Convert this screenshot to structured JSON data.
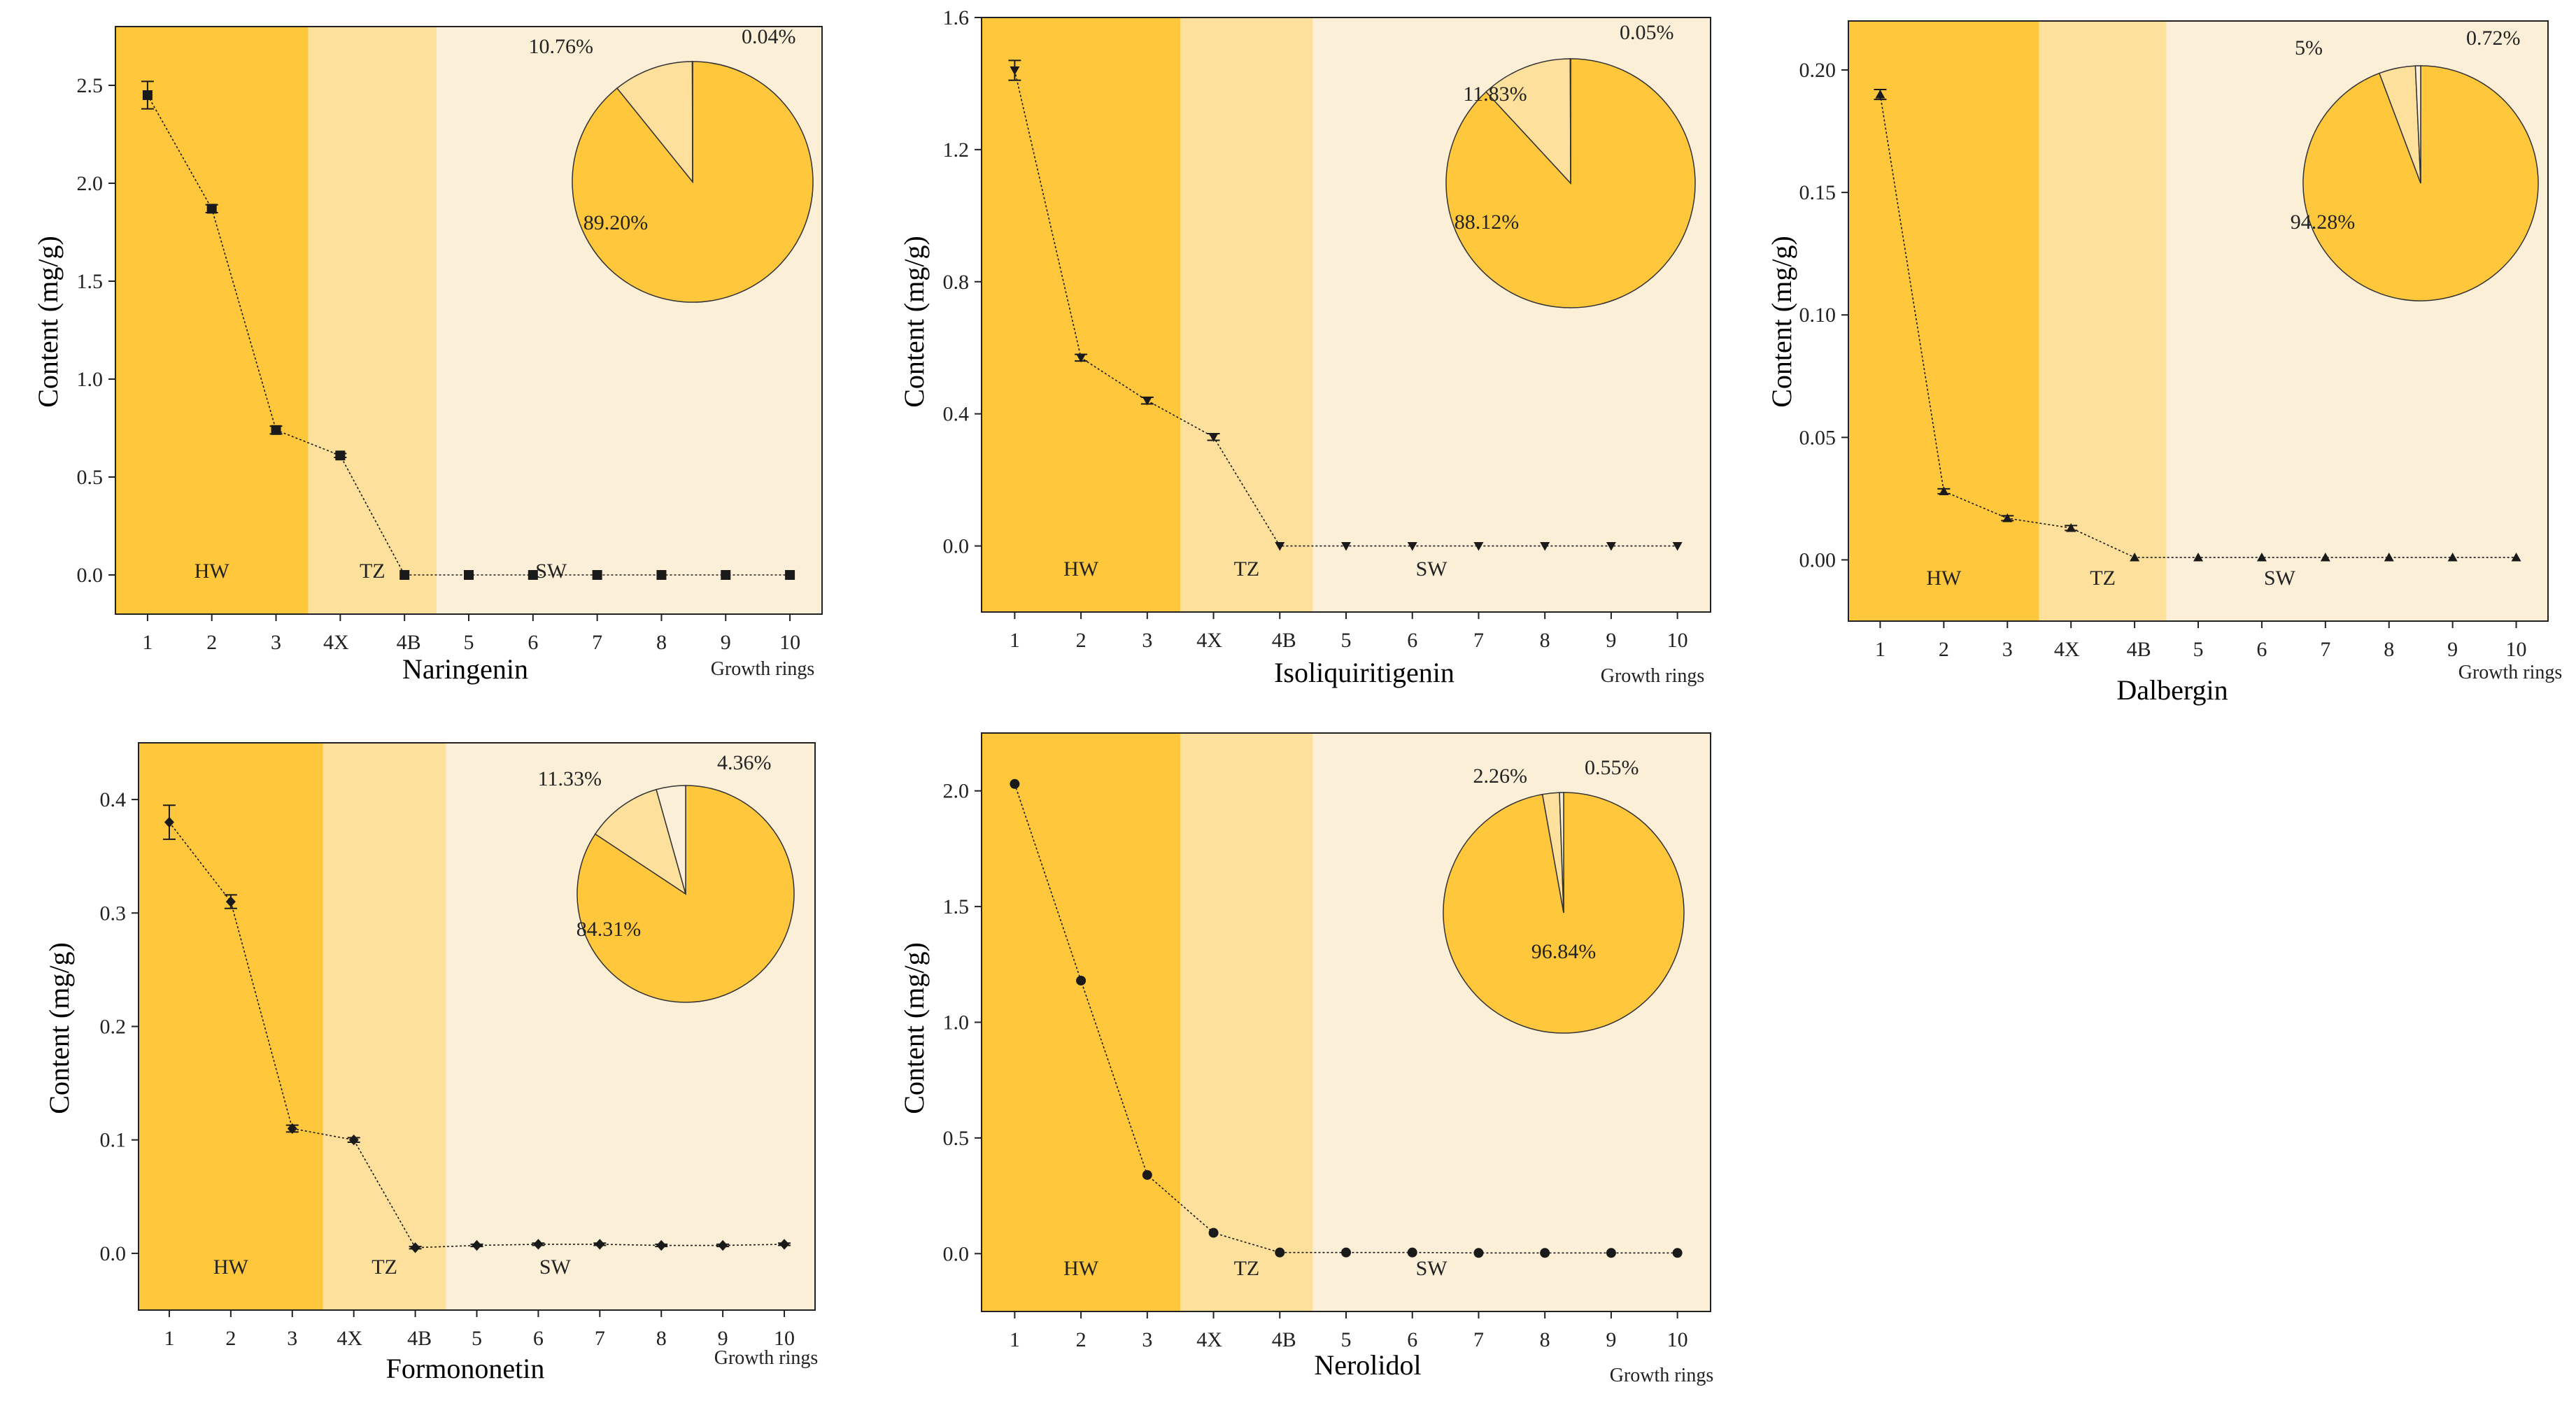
{
  "colors": {
    "hw": "#ffc83c",
    "tz": "#fde09c",
    "sw": "#fbefd8",
    "line": "#1a1a1a",
    "pie_edge": "#333333"
  },
  "chart_data": [
    {
      "type": "line",
      "title": "Naringenin",
      "ylabel": "Content   (mg/g)",
      "xlabel": "Growth rings",
      "categories": [
        "1",
        "2",
        "3",
        "4X",
        "4B",
        "5",
        "6",
        "7",
        "8",
        "9",
        "10"
      ],
      "values": [
        2.45,
        1.87,
        0.74,
        0.61,
        0.0,
        0.0,
        0.0,
        0.0,
        0.0,
        0.0,
        0.0
      ],
      "errors": [
        0.07,
        0.02,
        0.02,
        0.01,
        0,
        0,
        0,
        0,
        0,
        0,
        0
      ],
      "ylim": [
        -0.2,
        2.8
      ],
      "yticks": [
        "0.0",
        "0.5",
        "1.0",
        "1.5",
        "2.0",
        "2.5"
      ],
      "ytick_values": [
        0.0,
        0.5,
        1.0,
        1.5,
        2.0,
        2.5
      ],
      "regions": {
        "hw": "HW",
        "tz": "TZ",
        "sw": "SW"
      },
      "marker": "square",
      "pie": {
        "slices": [
          {
            "label": "89.20%",
            "value": 89.2,
            "region": "hw"
          },
          {
            "label": "10.76%",
            "value": 10.76,
            "region": "tz"
          },
          {
            "label": "0.04%",
            "value": 0.04,
            "region": "sw"
          }
        ]
      }
    },
    {
      "type": "line",
      "title": "Isoliquiritigenin",
      "ylabel": "Content   (mg/g)",
      "xlabel": "Growth rings",
      "categories": [
        "1",
        "2",
        "3",
        "4X",
        "4B",
        "5",
        "6",
        "7",
        "8",
        "9",
        "10"
      ],
      "values": [
        1.44,
        0.57,
        0.44,
        0.33,
        0.0,
        0.0,
        0.0,
        0.0,
        0.0,
        0.0,
        0.0
      ],
      "errors": [
        0.03,
        0.01,
        0.01,
        0.01,
        0,
        0,
        0,
        0,
        0,
        0,
        0
      ],
      "ylim": [
        -0.2,
        1.6
      ],
      "yticks": [
        "0.0",
        "0.4",
        "0.8",
        "1.2",
        "1.6"
      ],
      "ytick_values": [
        0.0,
        0.4,
        0.8,
        1.2,
        1.6
      ],
      "regions": {
        "hw": "HW",
        "tz": "TZ",
        "sw": "SW"
      },
      "marker": "triangle-down",
      "pie": {
        "slices": [
          {
            "label": "88.12%",
            "value": 88.12,
            "region": "hw"
          },
          {
            "label": "11.83%",
            "value": 11.83,
            "region": "tz"
          },
          {
            "label": "0.05%",
            "value": 0.05,
            "region": "sw"
          }
        ]
      }
    },
    {
      "type": "line",
      "title": "Dalbergin",
      "ylabel": "Content   (mg/g)",
      "xlabel": "Growth rings",
      "categories": [
        "1",
        "2",
        "3",
        "4X",
        "4B",
        "5",
        "6",
        "7",
        "8",
        "9",
        "10"
      ],
      "values": [
        0.19,
        0.028,
        0.017,
        0.013,
        0.001,
        0.001,
        0.001,
        0.001,
        0.001,
        0.001,
        0.001
      ],
      "errors": [
        0.002,
        0.001,
        0.001,
        0.001,
        0,
        0,
        0,
        0,
        0,
        0,
        0
      ],
      "ylim": [
        -0.025,
        0.22
      ],
      "yticks": [
        "0.00",
        "0.05",
        "0.10",
        "0.15",
        "0.20"
      ],
      "ytick_values": [
        0.0,
        0.05,
        0.1,
        0.15,
        0.2
      ],
      "regions": {
        "hw": "HW",
        "tz": "TZ",
        "sw": "SW"
      },
      "marker": "triangle-up",
      "pie": {
        "slices": [
          {
            "label": "94.28%",
            "value": 94.28,
            "region": "hw"
          },
          {
            "label": "5%",
            "value": 5.0,
            "region": "tz"
          },
          {
            "label": "0.72%",
            "value": 0.72,
            "region": "sw"
          }
        ]
      }
    },
    {
      "type": "line",
      "title": "Formononetin",
      "ylabel": "Content   (mg/g)",
      "xlabel": "Growth rings",
      "categories": [
        "1",
        "2",
        "3",
        "4X",
        "4B",
        "5",
        "6",
        "7",
        "8",
        "9",
        "10"
      ],
      "values": [
        0.38,
        0.31,
        0.11,
        0.1,
        0.005,
        0.007,
        0.008,
        0.008,
        0.007,
        0.007,
        0.008
      ],
      "errors": [
        0.015,
        0.006,
        0.003,
        0.002,
        0.001,
        0.001,
        0.001,
        0.001,
        0.001,
        0.001,
        0.001
      ],
      "ylim": [
        -0.05,
        0.45
      ],
      "yticks": [
        "0.0",
        "0.1",
        "0.2",
        "0.3",
        "0.4"
      ],
      "ytick_values": [
        0.0,
        0.1,
        0.2,
        0.3,
        0.4
      ],
      "regions": {
        "hw": "HW",
        "tz": "TZ",
        "sw": "SW"
      },
      "marker": "diamond",
      "pie": {
        "slices": [
          {
            "label": "84.31%",
            "value": 84.31,
            "region": "hw"
          },
          {
            "label": "11.33%",
            "value": 11.33,
            "region": "tz"
          },
          {
            "label": "4.36%",
            "value": 4.36,
            "region": "sw"
          }
        ]
      }
    },
    {
      "type": "line",
      "title": "Nerolidol",
      "ylabel": "Content   (mg/g)",
      "xlabel": "Growth  rings",
      "categories": [
        "1",
        "2",
        "3",
        "4X",
        "4B",
        "5",
        "6",
        "7",
        "8",
        "9",
        "10"
      ],
      "values": [
        2.03,
        1.18,
        0.34,
        0.09,
        0.005,
        0.005,
        0.005,
        0.003,
        0.003,
        0.003,
        0.003
      ],
      "errors": [
        0,
        0,
        0,
        0,
        0,
        0,
        0,
        0,
        0,
        0,
        0
      ],
      "ylim": [
        -0.25,
        2.25
      ],
      "yticks": [
        "0.0",
        "0.5",
        "1.0",
        "1.5",
        "2.0"
      ],
      "ytick_values": [
        0.0,
        0.5,
        1.0,
        1.5,
        2.0
      ],
      "regions": {
        "hw": "HW",
        "tz": "TZ",
        "sw": "SW"
      },
      "marker": "circle",
      "pie": {
        "slices": [
          {
            "label": "96.84%",
            "value": 96.84,
            "region": "hw"
          },
          {
            "label": "2.26%",
            "value": 2.26,
            "region": "tz"
          },
          {
            "label": "0.55%",
            "value": 0.55,
            "region": "sw"
          }
        ]
      }
    }
  ]
}
